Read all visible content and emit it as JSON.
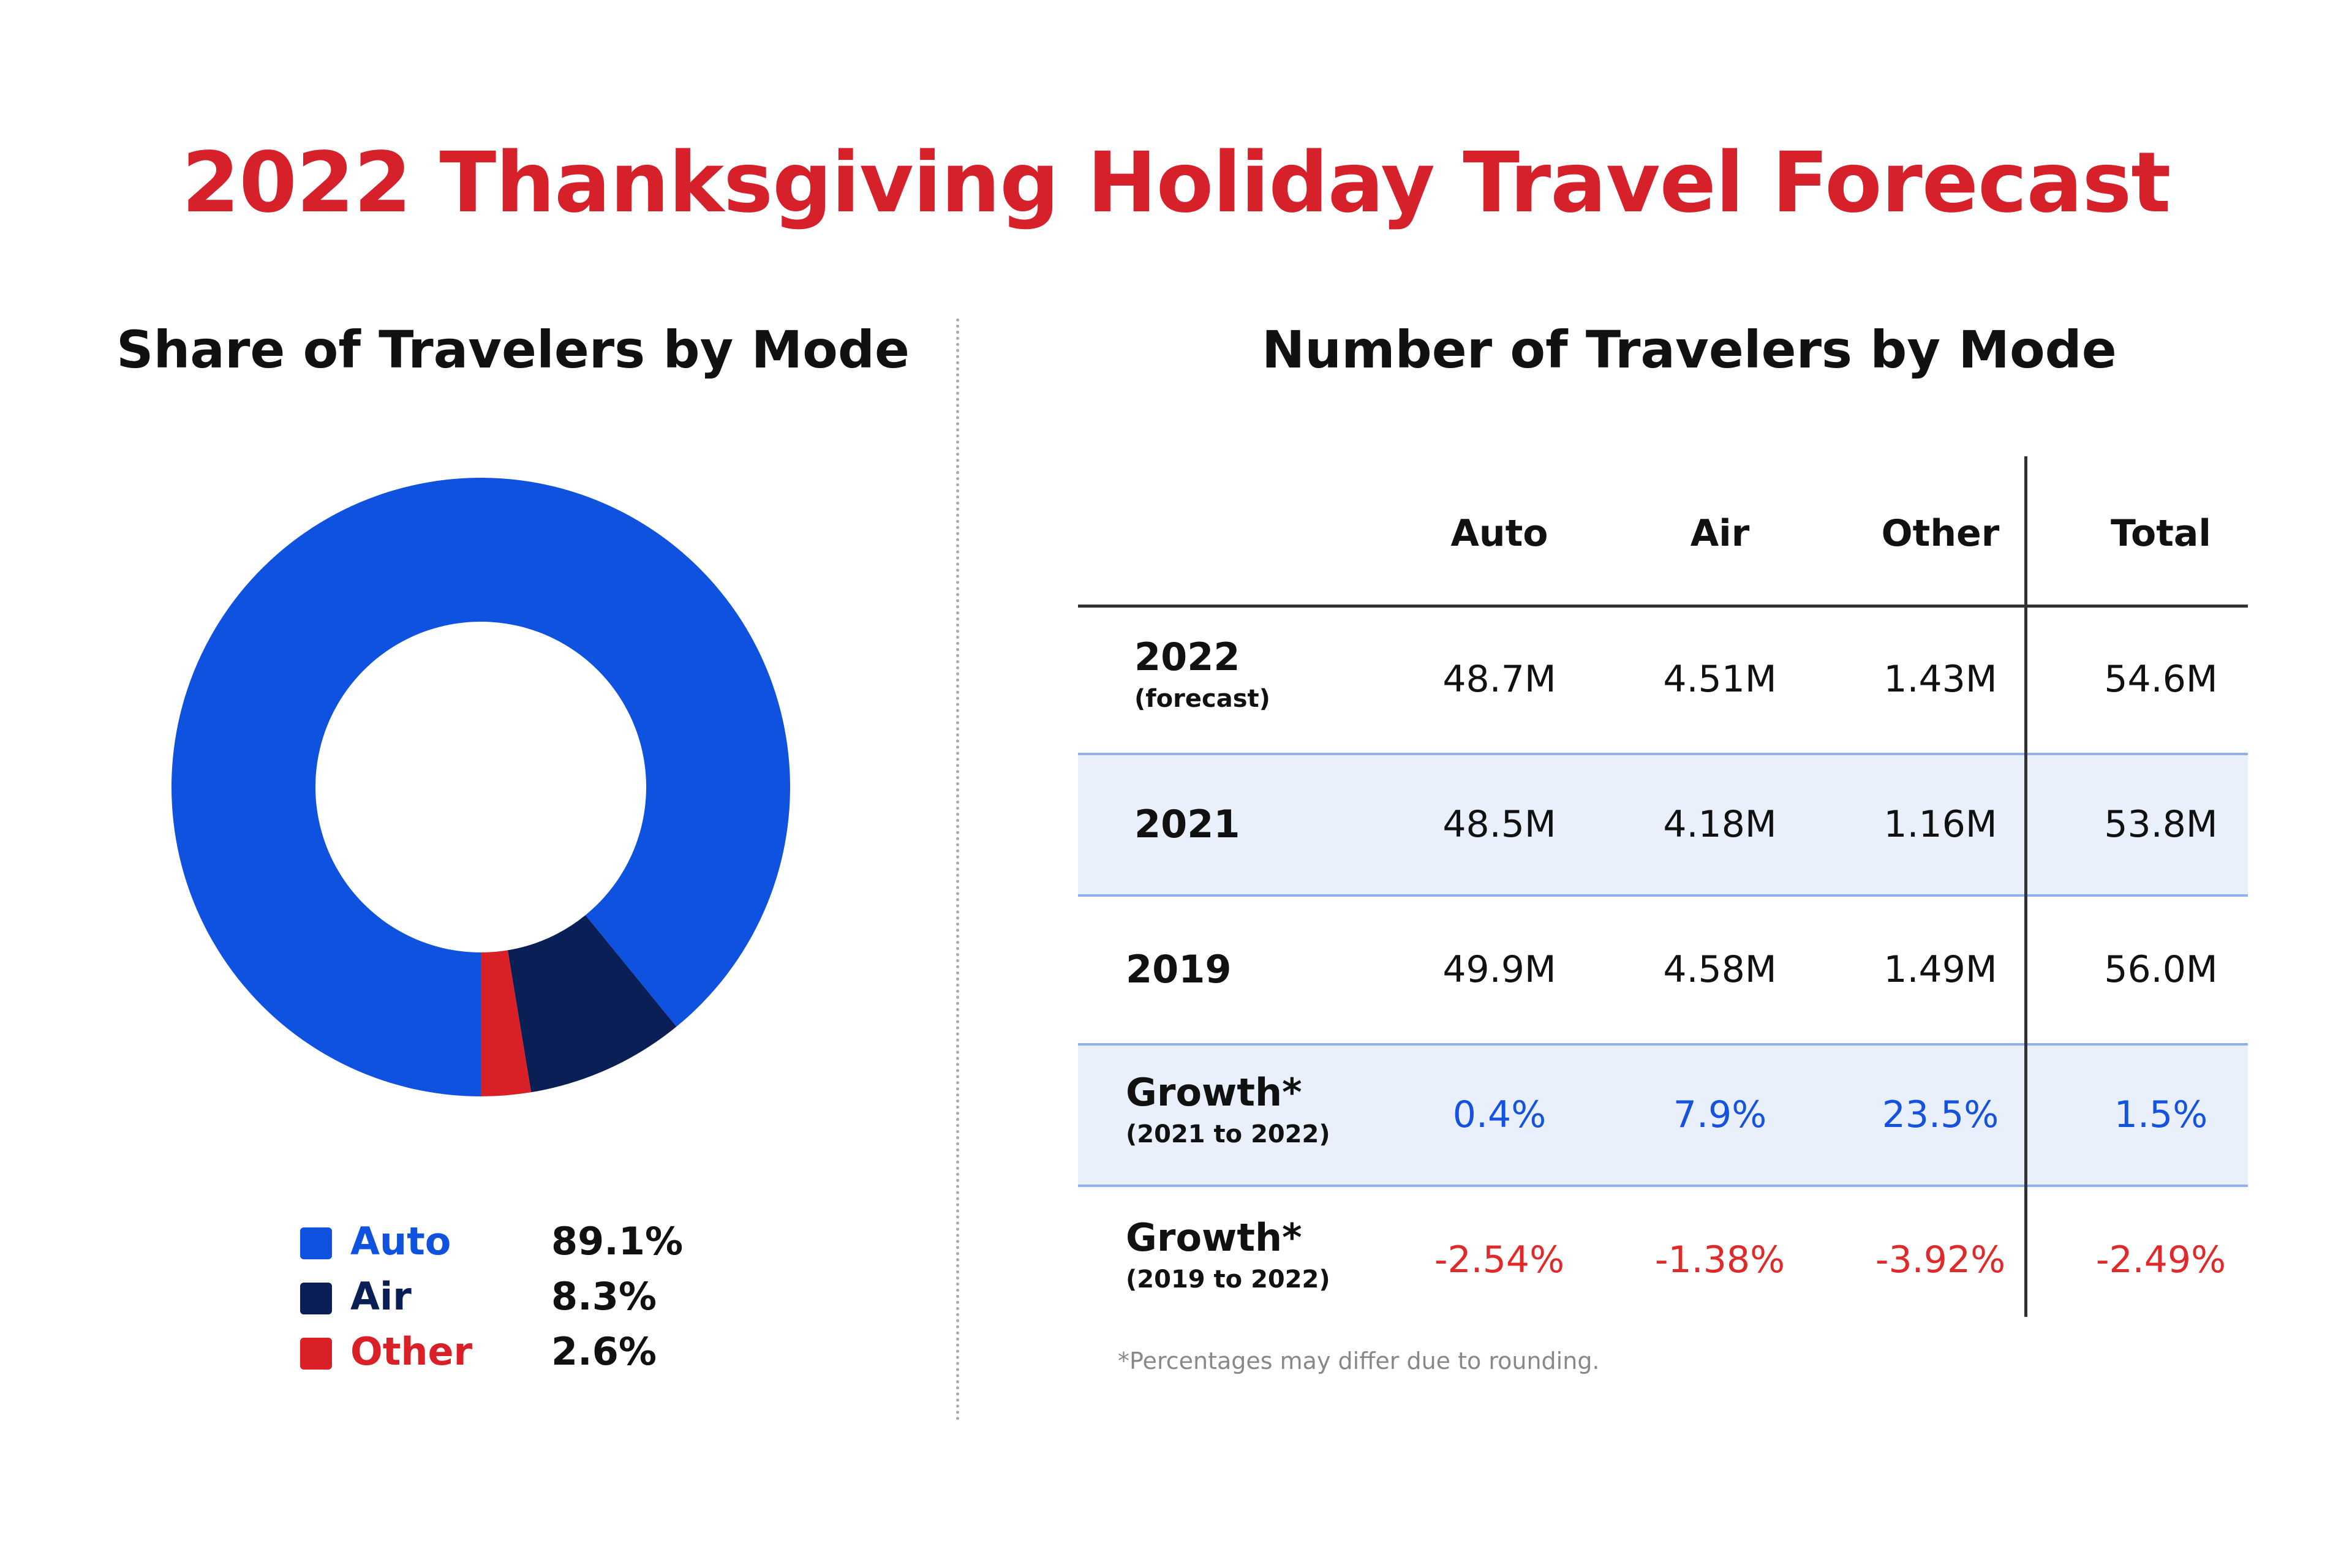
{
  "title": "2022 Thanksgiving Holiday Travel Forecast",
  "pie_title": "Share of Travelers by Mode",
  "table_title": "Number of Travelers by Mode",
  "colors": {
    "title": "#d6202a",
    "auto": "#0f52e0",
    "air": "#0b1f57",
    "other": "#d92027",
    "positive": "#1552e0",
    "negative": "#e02a2a"
  },
  "chart_data": [
    {
      "type": "pie",
      "title": "Share of Travelers by Mode",
      "categories": [
        "Auto",
        "Air",
        "Other"
      ],
      "values": [
        89.1,
        8.3,
        2.6
      ],
      "value_labels": [
        "89.1%",
        "8.3%",
        "2.6%"
      ],
      "colors": [
        "#0f52e0",
        "#0b1f57",
        "#d92027"
      ],
      "donut": true,
      "legend": "bottom"
    },
    {
      "type": "table",
      "title": "Number of Travelers by Mode",
      "columns": [
        "Auto",
        "Air",
        "Other",
        "Total"
      ],
      "rows": [
        {
          "label": "2022",
          "sub": "(forecast)",
          "cells": [
            "48.7M",
            "4.51M",
            "1.43M",
            "54.6M"
          ],
          "tone": "plain",
          "shaded": false
        },
        {
          "label": "2021",
          "sub": "",
          "cells": [
            "48.5M",
            "4.18M",
            "1.16M",
            "53.8M"
          ],
          "tone": "plain",
          "shaded": true
        },
        {
          "label": "2019",
          "sub": "",
          "cells": [
            "49.9M",
            "4.58M",
            "1.49M",
            "56.0M"
          ],
          "tone": "plain",
          "shaded": false
        },
        {
          "label": "Growth*",
          "sub": "(2021 to 2022)",
          "cells": [
            "0.4%",
            "7.9%",
            "23.5%",
            "1.5%"
          ],
          "tone": "pos",
          "shaded": true
        },
        {
          "label": "Growth*",
          "sub": "(2019 to 2022)",
          "cells": [
            "-2.54%",
            "-1.38%",
            "-3.92%",
            "-2.49%"
          ],
          "tone": "neg",
          "shaded": false
        }
      ],
      "footnote": "*Percentages may differ due to rounding."
    }
  ]
}
